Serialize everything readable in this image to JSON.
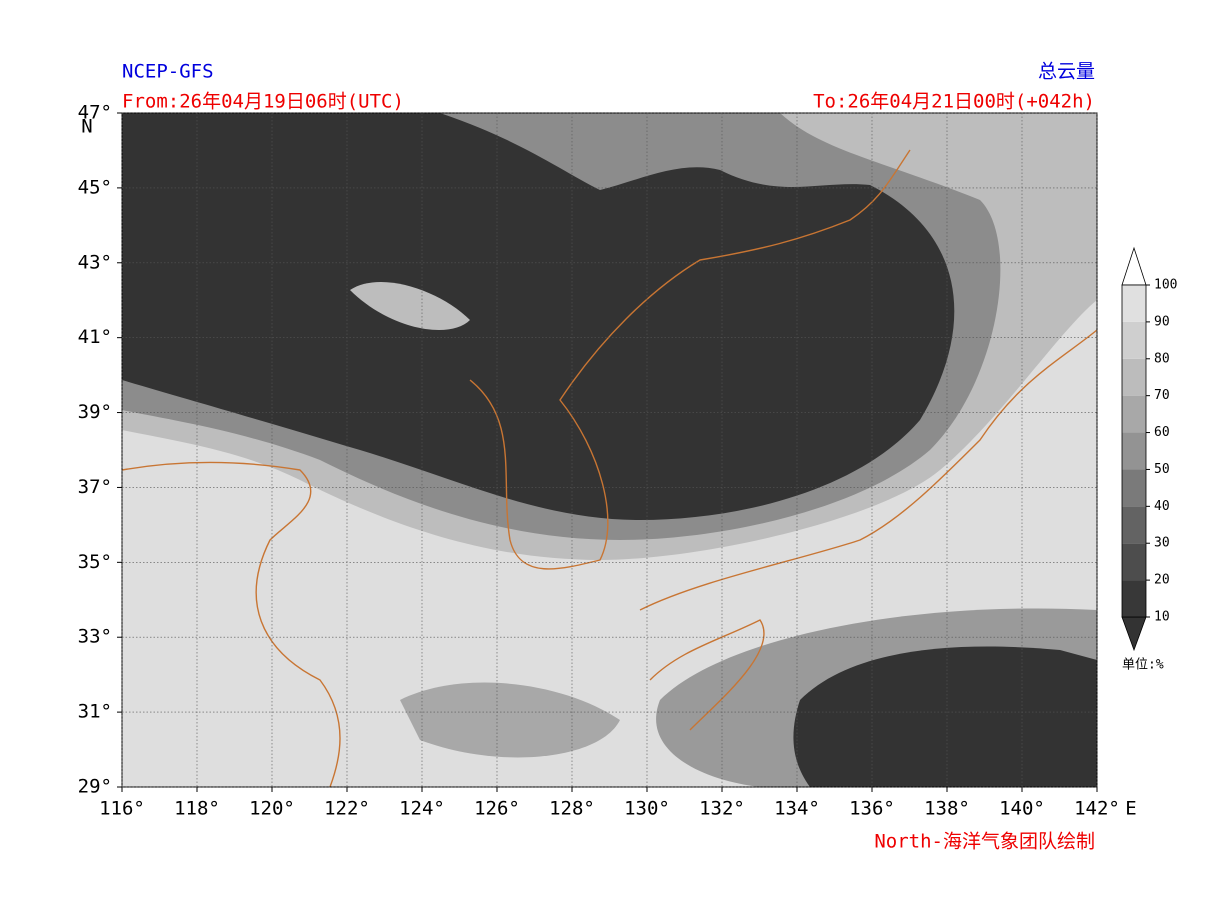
{
  "header": {
    "model": "NCEP-GFS",
    "variable": "总云量",
    "from": "From:26年04月19日06时(UTC)",
    "to": "To:26年04月21日00时(+042h)"
  },
  "map": {
    "lonlim": [
      116,
      142
    ],
    "latlim": [
      29,
      47
    ],
    "lat_unit": "N",
    "lon_unit": "E",
    "lon_ticks": [
      {
        "value": 116,
        "label": "116°"
      },
      {
        "value": 118,
        "label": "118°"
      },
      {
        "value": 120,
        "label": "120°"
      },
      {
        "value": 122,
        "label": "122°"
      },
      {
        "value": 124,
        "label": "124°"
      },
      {
        "value": 126,
        "label": "126°"
      },
      {
        "value": 128,
        "label": "128°"
      },
      {
        "value": 130,
        "label": "130°"
      },
      {
        "value": 132,
        "label": "132°"
      },
      {
        "value": 134,
        "label": "134°"
      },
      {
        "value": 136,
        "label": "136°"
      },
      {
        "value": 138,
        "label": "138°"
      },
      {
        "value": 140,
        "label": "140°"
      },
      {
        "value": 142,
        "label": "142°"
      }
    ],
    "lat_ticks": [
      {
        "value": 29,
        "label": "29°"
      },
      {
        "value": 31,
        "label": "31°"
      },
      {
        "value": 33,
        "label": "33°"
      },
      {
        "value": 35,
        "label": "35°"
      },
      {
        "value": 37,
        "label": "37°"
      },
      {
        "value": 39,
        "label": "39°"
      },
      {
        "value": 41,
        "label": "41°"
      },
      {
        "value": 43,
        "label": "43°"
      },
      {
        "value": 45,
        "label": "45°"
      },
      {
        "value": 47,
        "label": "47°"
      }
    ]
  },
  "colorbar": {
    "ticks": [
      10,
      20,
      30,
      40,
      50,
      60,
      70,
      80,
      90,
      100
    ],
    "colors": [
      "#383838",
      "#4d4d4d",
      "#636363",
      "#7a7a7a",
      "#939393",
      "#a8a8a8",
      "#bcbcbc",
      "#cfcfcf",
      "#e0e0e0"
    ],
    "under_color": "#333333",
    "over_color": "#ffffff",
    "unit_label": "单位:%"
  },
  "credit": "North-海洋气象团队绘制"
}
